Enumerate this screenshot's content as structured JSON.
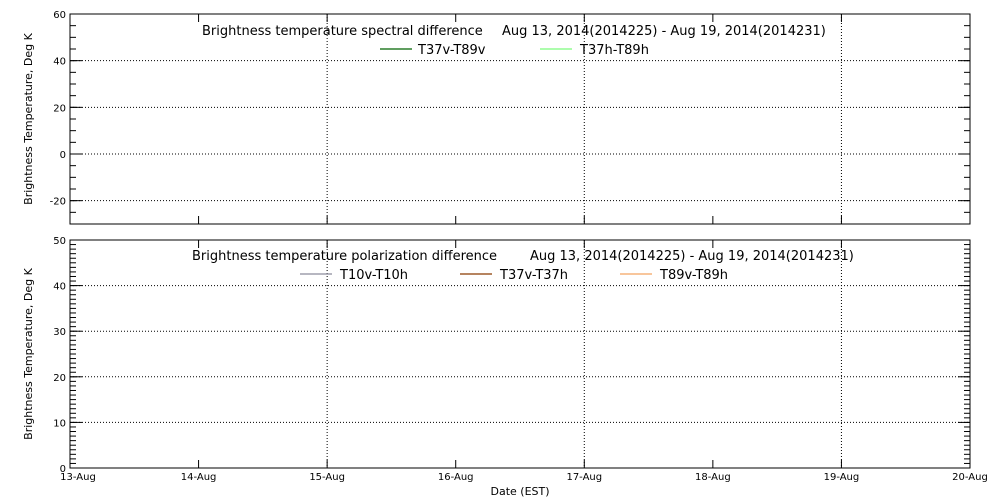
{
  "chart_data": [
    {
      "type": "line",
      "title": "Brightness temperature spectral difference",
      "date_range": "Aug 13, 2014(2014225) - Aug 19, 2014(2014231)",
      "ylabel": "Brightness Temperature, Deg K",
      "xlabel": "",
      "ylim": [
        -30,
        60
      ],
      "y_ticks": [
        "60",
        "40",
        "20",
        "0",
        "-20"
      ],
      "y_tick_values": [
        60,
        40,
        20,
        0,
        -20
      ],
      "y_minor_step": 5,
      "x_categories": [
        "13-Aug",
        "14-Aug",
        "15-Aug",
        "16-Aug",
        "17-Aug",
        "18-Aug",
        "19-Aug",
        "20-Aug"
      ],
      "x_major_grid_days": [
        2,
        4,
        6
      ],
      "grid": true,
      "series": [
        {
          "name": "T37v-T89v",
          "color": "#006400",
          "values": []
        },
        {
          "name": "T37h-T89h",
          "color": "#7CFC7C",
          "values": []
        }
      ]
    },
    {
      "type": "line",
      "title": "Brightness temperature polarization difference",
      "date_range": "Aug 13, 2014(2014225) - Aug 19, 2014(2014231)",
      "ylabel": "Brightness Temperature, Deg K",
      "xlabel": "Date (EST)",
      "ylim": [
        0,
        50
      ],
      "y_ticks": [
        "50",
        "40",
        "30",
        "20",
        "10",
        "0"
      ],
      "y_tick_values": [
        50,
        40,
        30,
        20,
        10,
        0
      ],
      "y_minor_step": 1,
      "x_categories": [
        "13-Aug",
        "14-Aug",
        "15-Aug",
        "16-Aug",
        "17-Aug",
        "18-Aug",
        "19-Aug",
        "20-Aug"
      ],
      "x_major_grid_days": [
        2,
        4,
        6
      ],
      "grid": true,
      "series": [
        {
          "name": "T10v-T10h",
          "color": "#8c8c9c",
          "values": []
        },
        {
          "name": "T37v-T37h",
          "color": "#8b3a00",
          "values": []
        },
        {
          "name": "T89v-T89h",
          "color": "#f4a460",
          "values": []
        }
      ]
    }
  ]
}
